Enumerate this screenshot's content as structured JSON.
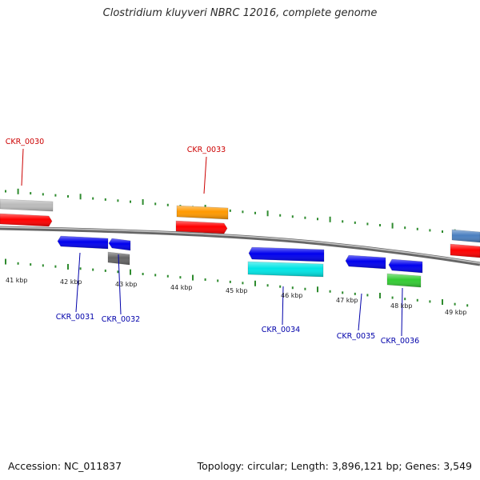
{
  "title": "Clostridium kluyveri NBRC 12016, complete genome",
  "footer": {
    "accession": "Accession: NC_011837",
    "summary": "Topology: circular; Length: 3,896,121 bp; Genes: 3,549"
  },
  "colors": {
    "backbone": "#8a8a8a",
    "tick": "#2e8b2e",
    "label_top": "#cc0000",
    "label_bottom": "#0000aa",
    "red": "#ff0000",
    "blue": "#0000ee",
    "grey": "#bbbbbb",
    "darkgrey": "#666666",
    "orange": "#ff9900",
    "cyan": "#00e5e5",
    "green": "#33cc33",
    "steelblue": "#4a7fc0"
  },
  "scale_labels": [
    "41 kbp",
    "42 kbp",
    "43 kbp",
    "44 kbp",
    "45 kbp",
    "46 kbp",
    "47 kbp",
    "48 kbp",
    "49 kbp"
  ],
  "gene_labels": [
    {
      "id": "CKR_0030",
      "strand": "top"
    },
    {
      "id": "CKR_0031",
      "strand": "bottom"
    },
    {
      "id": "CKR_0032",
      "strand": "bottom"
    },
    {
      "id": "CKR_0033",
      "strand": "top"
    },
    {
      "id": "CKR_0034",
      "strand": "bottom"
    },
    {
      "id": "CKR_0035",
      "strand": "bottom"
    },
    {
      "id": "CKR_0036",
      "strand": "bottom"
    }
  ],
  "features": [
    {
      "id": "f-grey-left",
      "color": "grey"
    },
    {
      "id": "f-red-left",
      "color": "red"
    },
    {
      "id": "f-blue-0031",
      "color": "blue"
    },
    {
      "id": "f-blue-0032",
      "color": "blue"
    },
    {
      "id": "f-darkgrey-0032",
      "color": "darkgrey"
    },
    {
      "id": "f-orange-0033",
      "color": "orange"
    },
    {
      "id": "f-red-0033",
      "color": "red"
    },
    {
      "id": "f-blue-0034",
      "color": "blue"
    },
    {
      "id": "f-cyan-0034",
      "color": "cyan"
    },
    {
      "id": "f-blue-0035",
      "color": "blue"
    },
    {
      "id": "f-blue-0036",
      "color": "blue"
    },
    {
      "id": "f-green-0036",
      "color": "green"
    },
    {
      "id": "f-steelblue-right",
      "color": "steelblue"
    },
    {
      "id": "f-red-right",
      "color": "red"
    }
  ]
}
